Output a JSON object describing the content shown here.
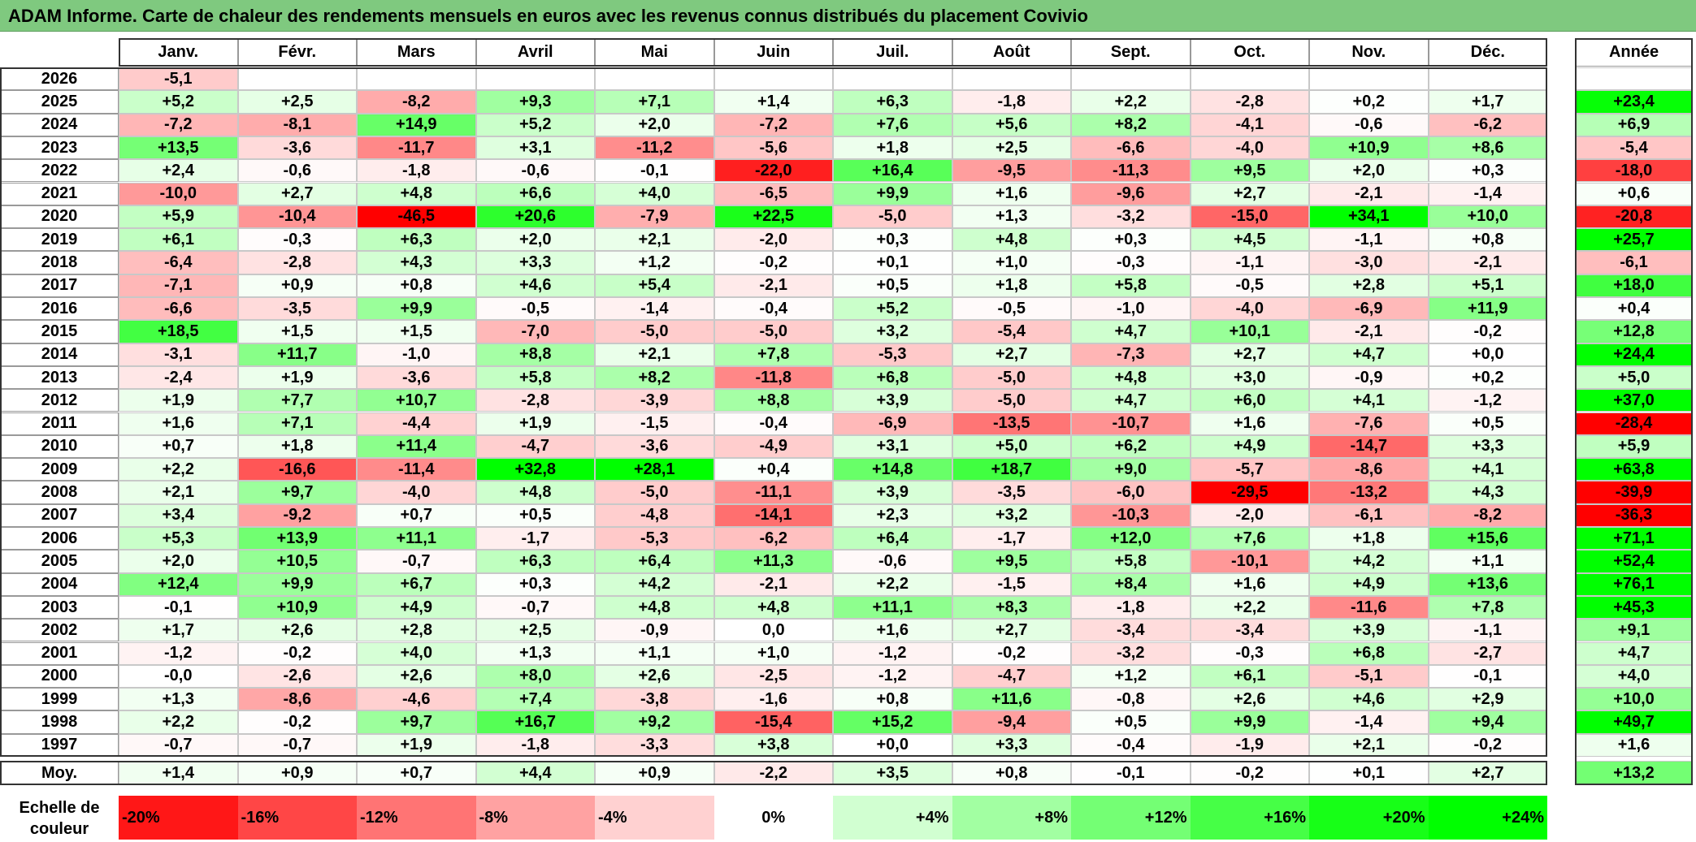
{
  "title": "ADAM Informe. Carte de chaleur des rendements mensuels en euros avec les revenus connus distribués du placement Covivio",
  "colors": {
    "title_bg": "#7fc97f",
    "negative": "#ff0000",
    "neutral": "#ffffff",
    "positive": "#00ff00"
  },
  "chart_data": {
    "type": "heatmap",
    "months": [
      "Janv.",
      "Févr.",
      "Mars",
      "Avril",
      "Mai",
      "Juin",
      "Juil.",
      "Août",
      "Sept.",
      "Oct.",
      "Nov.",
      "Déc."
    ],
    "year_col_label": "Année",
    "avg_label": "Moy.",
    "rows": [
      {
        "year": "2026",
        "values": [
          "-5,1",
          "",
          "",
          "",
          "",
          "",
          "",
          "",
          "",
          "",
          "",
          ""
        ],
        "annual": ""
      },
      {
        "year": "2025",
        "values": [
          "+5,2",
          "+2,5",
          "-8,2",
          "+9,3",
          "+7,1",
          "+1,4",
          "+6,3",
          "-1,8",
          "+2,2",
          "-2,8",
          "+0,2",
          "+1,7"
        ],
        "annual": "+23,4"
      },
      {
        "year": "2024",
        "values": [
          "-7,2",
          "-8,1",
          "+14,9",
          "+5,2",
          "+2,0",
          "-7,2",
          "+7,6",
          "+5,6",
          "+8,2",
          "-4,1",
          "-0,6",
          "-6,2"
        ],
        "annual": "+6,9"
      },
      {
        "year": "2023",
        "values": [
          "+13,5",
          "-3,6",
          "-11,7",
          "+3,1",
          "-11,2",
          "-5,6",
          "+1,8",
          "+2,5",
          "-6,6",
          "-4,0",
          "+10,9",
          "+8,6"
        ],
        "annual": "-5,4"
      },
      {
        "year": "2022",
        "values": [
          "+2,4",
          "-0,6",
          "-1,8",
          "-0,6",
          "-0,1",
          "-22,0",
          "+16,4",
          "-9,5",
          "-11,3",
          "+9,5",
          "+2,0",
          "+0,3"
        ],
        "annual": "-18,0"
      },
      {
        "year": "2021",
        "values": [
          "-10,0",
          "+2,7",
          "+4,8",
          "+6,6",
          "+4,0",
          "-6,5",
          "+9,9",
          "+1,6",
          "-9,6",
          "+2,7",
          "-2,1",
          "-1,4"
        ],
        "annual": "+0,6"
      },
      {
        "year": "2020",
        "values": [
          "+5,9",
          "-10,4",
          "-46,5",
          "+20,6",
          "-7,9",
          "+22,5",
          "-5,0",
          "+1,3",
          "-3,2",
          "-15,0",
          "+34,1",
          "+10,0"
        ],
        "annual": "-20,8"
      },
      {
        "year": "2019",
        "values": [
          "+6,1",
          "-0,3",
          "+6,3",
          "+2,0",
          "+2,1",
          "-2,0",
          "+0,3",
          "+4,8",
          "+0,3",
          "+4,5",
          "-1,1",
          "+0,8"
        ],
        "annual": "+25,7"
      },
      {
        "year": "2018",
        "values": [
          "-6,4",
          "-2,8",
          "+4,3",
          "+3,3",
          "+1,2",
          "-0,2",
          "+0,1",
          "+1,0",
          "-0,3",
          "-1,1",
          "-3,0",
          "-2,1"
        ],
        "annual": "-6,1"
      },
      {
        "year": "2017",
        "values": [
          "-7,1",
          "+0,9",
          "+0,8",
          "+4,6",
          "+5,4",
          "-2,1",
          "+0,5",
          "+1,8",
          "+5,8",
          "-0,5",
          "+2,8",
          "+5,1"
        ],
        "annual": "+18,0"
      },
      {
        "year": "2016",
        "values": [
          "-6,6",
          "-3,5",
          "+9,9",
          "-0,5",
          "-1,4",
          "-0,4",
          "+5,2",
          "-0,5",
          "-1,0",
          "-4,0",
          "-6,9",
          "+11,9"
        ],
        "annual": "+0,4"
      },
      {
        "year": "2015",
        "values": [
          "+18,5",
          "+1,5",
          "+1,5",
          "-7,0",
          "-5,0",
          "-5,0",
          "+3,2",
          "-5,4",
          "+4,7",
          "+10,1",
          "-2,1",
          "-0,2"
        ],
        "annual": "+12,8"
      },
      {
        "year": "2014",
        "values": [
          "-3,1",
          "+11,7",
          "-1,0",
          "+8,8",
          "+2,1",
          "+7,8",
          "-5,3",
          "+2,7",
          "-7,3",
          "+2,7",
          "+4,7",
          "+0,0"
        ],
        "annual": "+24,4"
      },
      {
        "year": "2013",
        "values": [
          "-2,4",
          "+1,9",
          "-3,6",
          "+5,8",
          "+8,2",
          "-11,8",
          "+6,8",
          "-5,0",
          "+4,8",
          "+3,0",
          "-0,9",
          "+0,2"
        ],
        "annual": "+5,0"
      },
      {
        "year": "2012",
        "values": [
          "+1,9",
          "+7,7",
          "+10,7",
          "-2,8",
          "-3,9",
          "+8,8",
          "+3,9",
          "-5,0",
          "+4,7",
          "+6,0",
          "+4,1",
          "-1,2"
        ],
        "annual": "+37,0"
      },
      {
        "year": "2011",
        "values": [
          "+1,6",
          "+7,1",
          "-4,4",
          "+1,9",
          "-1,5",
          "-0,4",
          "-6,9",
          "-13,5",
          "-10,7",
          "+1,6",
          "-7,6",
          "+0,5"
        ],
        "annual": "-28,4"
      },
      {
        "year": "2010",
        "values": [
          "+0,7",
          "+1,8",
          "+11,4",
          "-4,7",
          "-3,6",
          "-4,9",
          "+3,1",
          "+5,0",
          "+6,2",
          "+4,9",
          "-14,7",
          "+3,3"
        ],
        "annual": "+5,9"
      },
      {
        "year": "2009",
        "values": [
          "+2,2",
          "-16,6",
          "-11,4",
          "+32,8",
          "+28,1",
          "+0,4",
          "+14,8",
          "+18,7",
          "+9,0",
          "-5,7",
          "-8,6",
          "+4,1"
        ],
        "annual": "+63,8"
      },
      {
        "year": "2008",
        "values": [
          "+2,1",
          "+9,7",
          "-4,0",
          "+4,8",
          "-5,0",
          "-11,1",
          "+3,9",
          "-3,5",
          "-6,0",
          "-29,5",
          "-13,2",
          "+4,3"
        ],
        "annual": "-39,9"
      },
      {
        "year": "2007",
        "values": [
          "+3,4",
          "-9,2",
          "+0,7",
          "+0,5",
          "-4,8",
          "-14,1",
          "+2,3",
          "+3,2",
          "-10,3",
          "-2,0",
          "-6,1",
          "-8,2"
        ],
        "annual": "-36,3"
      },
      {
        "year": "2006",
        "values": [
          "+5,3",
          "+13,9",
          "+11,1",
          "-1,7",
          "-5,3",
          "-6,2",
          "+6,4",
          "-1,7",
          "+12,0",
          "+7,6",
          "+1,8",
          "+15,6"
        ],
        "annual": "+71,1"
      },
      {
        "year": "2005",
        "values": [
          "+2,0",
          "+10,5",
          "-0,7",
          "+6,3",
          "+6,4",
          "+11,3",
          "-0,6",
          "+9,5",
          "+5,8",
          "-10,1",
          "+4,2",
          "+1,1"
        ],
        "annual": "+52,4"
      },
      {
        "year": "2004",
        "values": [
          "+12,4",
          "+9,9",
          "+6,7",
          "+0,3",
          "+4,2",
          "-2,1",
          "+2,2",
          "-1,5",
          "+8,4",
          "+1,6",
          "+4,9",
          "+13,6"
        ],
        "annual": "+76,1"
      },
      {
        "year": "2003",
        "values": [
          "-0,1",
          "+10,9",
          "+4,9",
          "-0,7",
          "+4,8",
          "+4,8",
          "+11,1",
          "+8,3",
          "-1,8",
          "+2,2",
          "-11,6",
          "+7,8"
        ],
        "annual": "+45,3"
      },
      {
        "year": "2002",
        "values": [
          "+1,7",
          "+2,6",
          "+2,8",
          "+2,5",
          "-0,9",
          "0,0",
          "+1,6",
          "+2,7",
          "-3,4",
          "-3,4",
          "+3,9",
          "-1,1"
        ],
        "annual": "+9,1"
      },
      {
        "year": "2001",
        "values": [
          "-1,2",
          "-0,2",
          "+4,0",
          "+1,3",
          "+1,1",
          "+1,0",
          "-1,2",
          "-0,2",
          "-3,2",
          "-0,3",
          "+6,8",
          "-2,7"
        ],
        "annual": "+4,7"
      },
      {
        "year": "2000",
        "values": [
          "-0,0",
          "-2,6",
          "+2,6",
          "+8,0",
          "+2,6",
          "-2,5",
          "-1,2",
          "-4,7",
          "+1,2",
          "+6,1",
          "-5,1",
          "-0,1"
        ],
        "annual": "+4,0"
      },
      {
        "year": "1999",
        "values": [
          "+1,3",
          "-8,6",
          "-4,6",
          "+7,4",
          "-3,8",
          "-1,6",
          "+0,8",
          "+11,6",
          "-0,8",
          "+2,6",
          "+4,6",
          "+2,9"
        ],
        "annual": "+10,0"
      },
      {
        "year": "1998",
        "values": [
          "+2,2",
          "-0,2",
          "+9,7",
          "+16,7",
          "+9,2",
          "-15,4",
          "+15,2",
          "-9,4",
          "+0,5",
          "+9,9",
          "-1,4",
          "+9,4"
        ],
        "annual": "+49,7"
      },
      {
        "year": "1997",
        "values": [
          "-0,7",
          "-0,7",
          "+1,9",
          "-1,8",
          "-3,3",
          "+3,8",
          "+0,0",
          "+3,3",
          "-0,4",
          "-1,9",
          "+2,1",
          "-0,2"
        ],
        "annual": "+1,6"
      }
    ],
    "averages": [
      "+1,4",
      "+0,9",
      "+0,7",
      "+4,4",
      "+0,9",
      "-2,2",
      "+3,5",
      "+0,8",
      "-0,1",
      "-0,2",
      "+0,1",
      "+2,7"
    ],
    "annual_average": "+13,2",
    "scale": {
      "label": "Echelle de couleur",
      "steps": [
        "-20%",
        "-16%",
        "-12%",
        "-8%",
        "-4%",
        "0%",
        "+4%",
        "+8%",
        "+12%",
        "+16%",
        "+20%",
        "+24%"
      ]
    }
  }
}
